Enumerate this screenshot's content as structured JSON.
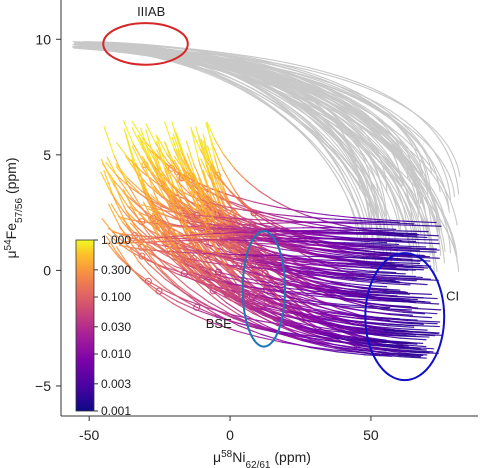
{
  "chart_data": {
    "type": "line",
    "title": "",
    "xlabel": {
      "prefix": "μ",
      "sup": "58",
      "mid": "Ni",
      "sub": "62/61",
      "suffix": " (ppm)"
    },
    "ylabel": {
      "prefix": "μ",
      "sup": "54",
      "mid": "Fe",
      "sub": "57/56",
      "suffix": " (ppm)"
    },
    "xlim": [
      -60,
      88
    ],
    "ylim": [
      -6.3,
      11.7
    ],
    "xticks": [
      -50,
      0,
      50
    ],
    "yticks": [
      -5,
      0,
      5,
      10
    ],
    "grid": false,
    "colorbar": {
      "colormap": "plasma",
      "scale": "log",
      "labels": [
        "1.000",
        "0.300",
        "0.100",
        "0.030",
        "0.010",
        "0.003",
        "0.001"
      ],
      "range": [
        0.001,
        1.0
      ],
      "placement": "left-inside"
    },
    "series": [
      {
        "group": "gray-mixing-curves",
        "color": "#c8c8c8",
        "count": 90,
        "start": [
          -56,
          9.6
        ],
        "end_x_range": [
          45,
          82
        ],
        "end_y_range": [
          -0.2,
          4.2
        ]
      },
      {
        "group": "colored-mixing-curves",
        "colored_by": "colorbar value",
        "count": 150,
        "start_x_range": [
          -46,
          -7
        ],
        "start_y_range": [
          0.8,
          6.6
        ],
        "end_x_range": [
          55,
          75
        ],
        "end_y_range": [
          -3.8,
          2.1
        ]
      }
    ],
    "annotations": [
      {
        "text": "IIIAB",
        "center": [
          -30,
          9.8
        ],
        "ellipse_radii": [
          15,
          0.9
        ],
        "ellipse_color": "#d62728",
        "label_at": [
          -28,
          11.0
        ]
      },
      {
        "text": "BSE",
        "center": [
          12,
          -0.8
        ],
        "ellipse_radii": [
          7.5,
          2.5
        ],
        "ellipse_color": "#1f77b4",
        "label_at": [
          -4,
          -2.5
        ]
      },
      {
        "text": "CI",
        "center": [
          62,
          -2.0
        ],
        "ellipse_radii": [
          14,
          2.75
        ],
        "ellipse_color": "#1010c8",
        "label_at": [
          79,
          -1.3
        ]
      }
    ]
  }
}
